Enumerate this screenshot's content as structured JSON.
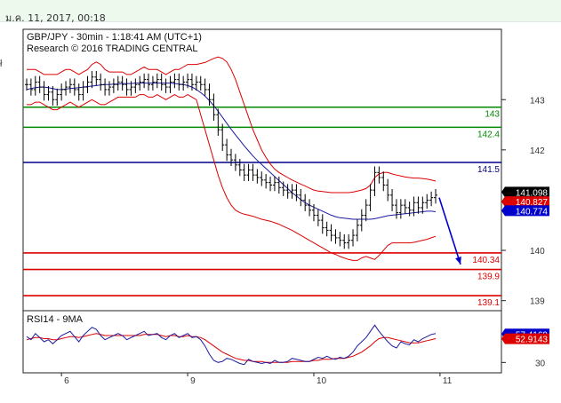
{
  "header": {
    "timestamp": "ม.ค. 11, 2017, 00:18"
  },
  "left_strip_mark": "ł",
  "chart_data": [
    {
      "type": "line",
      "panel": "price",
      "title": "GBP/JPY - 30min - 1:18:41 AM (UTC+1)",
      "subtitle": "Research © 2016 TRADING CENTRAL",
      "ylim": [
        138.8,
        144.4
      ],
      "y_ticks": [
        {
          "value": 143,
          "label": "143"
        },
        {
          "value": 142,
          "label": "142"
        },
        {
          "value": 140,
          "label": "140"
        },
        {
          "value": 139,
          "label": "139"
        }
      ],
      "x_ticks": [
        {
          "index": 8,
          "label": "6"
        },
        {
          "index": 37,
          "label": "9"
        },
        {
          "index": 66,
          "label": "10"
        },
        {
          "index": 95,
          "label": "11"
        }
      ],
      "levels": [
        {
          "value": 142.85,
          "label": "143",
          "color": "#008800"
        },
        {
          "value": 142.45,
          "label": "142.4",
          "color": "#008800"
        },
        {
          "value": 141.75,
          "label": "141.5",
          "color": "#000088"
        },
        {
          "value": 139.95,
          "label": "140.34",
          "color": "#dd0000"
        },
        {
          "value": 139.62,
          "label": "139.9",
          "color": "#dd0000"
        },
        {
          "value": 139.1,
          "label": "139.1",
          "color": "#dd0000"
        }
      ],
      "badges": [
        {
          "value": 141.16,
          "label": "141.098",
          "bg": "#000000",
          "fg": "#ffffff"
        },
        {
          "value": 140.97,
          "label": "140.827",
          "bg": "#dd0000",
          "fg": "#ffffff"
        },
        {
          "value": 140.79,
          "label": "140.774",
          "bg": "#0000cc",
          "fg": "#ffffff"
        }
      ],
      "close": [
        143.3,
        143.2,
        143.35,
        143.25,
        143.1,
        143.15,
        143.0,
        143.1,
        143.2,
        143.25,
        143.3,
        143.2,
        143.1,
        143.25,
        143.35,
        143.45,
        143.4,
        143.3,
        143.2,
        143.25,
        143.3,
        143.35,
        143.3,
        143.2,
        143.25,
        143.3,
        143.35,
        143.4,
        143.3,
        143.35,
        143.4,
        143.3,
        143.25,
        143.35,
        143.4,
        143.3,
        143.35,
        143.4,
        143.3,
        143.35,
        143.3,
        143.2,
        143.0,
        142.7,
        142.4,
        142.1,
        141.9,
        141.8,
        141.7,
        141.6,
        141.5,
        141.6,
        141.5,
        141.45,
        141.4,
        141.35,
        141.3,
        141.35,
        141.25,
        141.2,
        141.15,
        141.2,
        141.1,
        141.0,
        140.9,
        140.8,
        140.7,
        140.6,
        140.45,
        140.4,
        140.3,
        140.25,
        140.2,
        140.15,
        140.2,
        140.3,
        140.5,
        140.7,
        140.9,
        141.2,
        141.55,
        141.45,
        141.3,
        141.1,
        140.9,
        140.75,
        140.9,
        140.85,
        140.8,
        140.95,
        140.85,
        140.95,
        141.0,
        141.05,
        141.1
      ],
      "ma": [
        143.2,
        143.22,
        143.24,
        143.25,
        143.25,
        143.24,
        143.22,
        143.2,
        143.2,
        143.21,
        143.22,
        143.23,
        143.24,
        143.25,
        143.26,
        143.27,
        143.28,
        143.29,
        143.3,
        143.3,
        143.31,
        143.31,
        143.32,
        143.32,
        143.32,
        143.33,
        143.33,
        143.33,
        143.33,
        143.33,
        143.33,
        143.33,
        143.33,
        143.33,
        143.32,
        143.31,
        143.3,
        143.28,
        143.25,
        143.2,
        143.14,
        143.07,
        142.98,
        142.88,
        142.77,
        142.65,
        142.53,
        142.41,
        142.3,
        142.19,
        142.08,
        141.98,
        141.88,
        141.79,
        141.71,
        141.63,
        141.55,
        141.47,
        141.39,
        141.31,
        141.23,
        141.15,
        141.08,
        141.01,
        140.95,
        140.9,
        140.86,
        140.82,
        140.78,
        140.74,
        140.7,
        140.67,
        140.65,
        140.64,
        140.63,
        140.62,
        140.62,
        140.62,
        140.62,
        140.62,
        140.63,
        140.65,
        140.67,
        140.69,
        140.7,
        140.71,
        140.72,
        140.73,
        140.74,
        140.75,
        140.76,
        140.77,
        140.78,
        140.78,
        140.77
      ],
      "bb_upper": [
        143.6,
        143.6,
        143.6,
        143.55,
        143.5,
        143.5,
        143.5,
        143.5,
        143.55,
        143.6,
        143.6,
        143.55,
        143.5,
        143.55,
        143.6,
        143.7,
        143.75,
        143.7,
        143.6,
        143.55,
        143.55,
        143.55,
        143.55,
        143.5,
        143.5,
        143.55,
        143.6,
        143.65,
        143.6,
        143.6,
        143.6,
        143.55,
        143.5,
        143.55,
        143.6,
        143.6,
        143.65,
        143.7,
        143.7,
        143.7,
        143.72,
        143.74,
        143.78,
        143.82,
        143.85,
        143.82,
        143.75,
        143.6,
        143.4,
        143.15,
        142.9,
        142.65,
        142.4,
        142.2,
        142.0,
        141.85,
        141.72,
        141.62,
        141.55,
        141.5,
        141.45,
        141.4,
        141.36,
        141.32,
        141.28,
        141.24,
        141.2,
        141.18,
        141.17,
        141.16,
        141.15,
        141.15,
        141.15,
        141.15,
        141.15,
        141.16,
        141.18,
        141.2,
        141.23,
        141.3,
        141.45,
        141.52,
        141.55,
        141.55,
        141.52,
        141.5,
        141.48,
        141.46,
        141.45,
        141.44,
        141.44,
        141.43,
        141.42,
        141.4,
        141.38
      ],
      "bb_lower": [
        142.9,
        142.9,
        142.95,
        142.95,
        142.9,
        142.85,
        142.8,
        142.8,
        142.85,
        142.9,
        142.95,
        142.9,
        142.85,
        142.9,
        142.95,
        143.0,
        142.95,
        142.9,
        142.9,
        142.95,
        143.0,
        143.05,
        143.05,
        143.05,
        143.05,
        143.05,
        143.1,
        143.1,
        143.05,
        143.05,
        143.1,
        143.05,
        143.0,
        143.05,
        143.1,
        143.05,
        143.05,
        143.1,
        143.05,
        143.0,
        142.7,
        142.4,
        142.1,
        141.8,
        141.5,
        141.25,
        141.05,
        140.9,
        140.8,
        140.75,
        140.72,
        140.7,
        140.68,
        140.65,
        140.62,
        140.6,
        140.58,
        140.55,
        140.52,
        140.48,
        140.44,
        140.4,
        140.35,
        140.3,
        140.25,
        140.2,
        140.15,
        140.1,
        140.05,
        140.0,
        139.95,
        139.92,
        139.88,
        139.85,
        139.82,
        139.8,
        139.8,
        139.85,
        139.88,
        139.85,
        139.82,
        139.9,
        140.0,
        140.1,
        140.15,
        140.15,
        140.15,
        140.15,
        140.15,
        140.16,
        140.18,
        140.2,
        140.22,
        140.25,
        140.28
      ]
    },
    {
      "type": "line",
      "panel": "rsi",
      "title": "RSI14 - 9MA",
      "ylim": [
        20,
        80
      ],
      "y_ticks": [
        {
          "value": 30,
          "label": "30"
        }
      ],
      "badges": [
        {
          "value": 57.5,
          "label": "57.4169",
          "bg": "#0000cc",
          "fg": "#ffffff"
        },
        {
          "value": 52.9,
          "label": "52.9143",
          "bg": "#dd0000",
          "fg": "#ffffff"
        }
      ],
      "rsi": [
        55,
        52,
        58,
        54,
        50,
        52,
        48,
        52,
        56,
        58,
        60,
        55,
        50,
        56,
        60,
        64,
        62,
        56,
        52,
        54,
        56,
        58,
        56,
        52,
        54,
        56,
        58,
        60,
        56,
        57,
        58,
        54,
        52,
        56,
        58,
        54,
        56,
        58,
        54,
        55,
        52,
        46,
        38,
        32,
        30,
        31,
        34,
        33,
        31,
        29,
        28,
        33,
        31,
        30,
        29,
        30,
        29,
        32,
        30,
        30,
        31,
        34,
        33,
        32,
        31,
        31,
        33,
        35,
        34,
        36,
        34,
        33,
        35,
        34,
        36,
        40,
        46,
        50,
        54,
        60,
        66,
        60,
        55,
        50,
        46,
        44,
        50,
        48,
        47,
        52,
        50,
        53,
        55,
        57,
        58
      ],
      "rsi_ma": [
        52,
        53,
        54,
        54,
        53,
        53,
        52,
        52,
        53,
        54,
        55,
        55,
        54,
        55,
        56,
        57,
        58,
        57,
        56,
        56,
        56,
        56,
        56,
        56,
        56,
        56,
        56,
        57,
        57,
        57,
        57,
        56,
        55,
        56,
        56,
        55,
        55,
        56,
        55,
        55,
        54,
        52,
        49,
        46,
        43,
        40,
        38,
        36,
        34,
        33,
        32,
        32,
        31,
        31,
        31,
        30,
        30,
        30,
        30,
        30,
        30,
        31,
        31,
        31,
        31,
        31,
        32,
        32,
        33,
        33,
        33,
        34,
        34,
        34,
        35,
        36,
        38,
        40,
        43,
        46,
        50,
        53,
        54,
        54,
        53,
        52,
        51,
        50,
        49,
        49,
        49,
        50,
        51,
        52,
        53
      ]
    }
  ]
}
